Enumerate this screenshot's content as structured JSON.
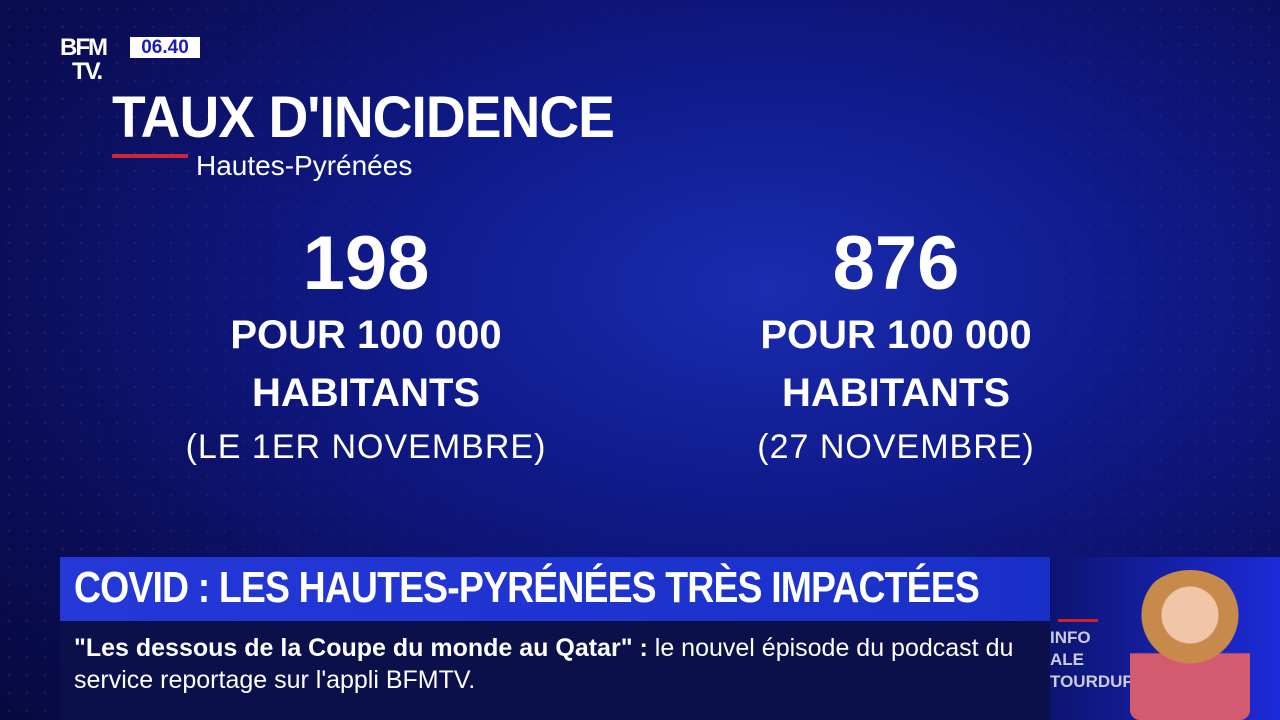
{
  "channel": {
    "logo": "BFM TV.",
    "logo_line1": "BFM",
    "logo_line2": "TV.",
    "time": "06.40"
  },
  "graphic": {
    "title": "TAUX D'INCIDENCE",
    "subtitle": "Hautes-Pyrénées",
    "stats": [
      {
        "value": "198",
        "line1": "POUR 100 000",
        "line2": "HABITANTS",
        "date": "(LE 1ER NOVEMBRE)"
      },
      {
        "value": "876",
        "line1": "POUR 100 000",
        "line2": "HABITANTS",
        "date": "(27 NOVEMBRE)"
      }
    ]
  },
  "headline": "COVID : LES HAUTES-PYRÉNÉES TRÈS IMPACTÉES",
  "ticker": {
    "quote": "\"Les dessous de la Coupe du monde au Qatar\"",
    "separator": " : ",
    "text": "le nouvel épisode du podcast du service reportage sur l'appli BFMTV."
  },
  "promo": {
    "line1": "INFO",
    "line2": "ALE",
    "line3": "TOURDUPIN"
  },
  "colors": {
    "background": "#0a0c5a",
    "headline_band": "#2438d8",
    "accent_red": "#c8283a"
  }
}
